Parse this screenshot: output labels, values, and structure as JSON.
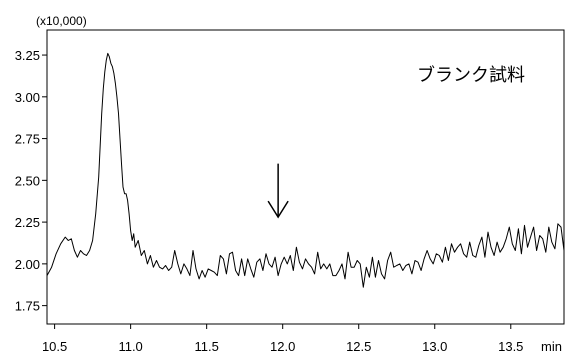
{
  "chart_data": {
    "type": "line",
    "y_scale_label": "(x10,000)",
    "x_unit": "min",
    "annotation": "ブランク試料",
    "marker": {
      "type": "arrow-down",
      "x": 11.97,
      "y_from": 2.6,
      "y_to": 2.28
    },
    "xlim": [
      10.45,
      13.85
    ],
    "ylim": [
      1.64,
      3.4
    ],
    "x_ticks": [
      10.5,
      11.0,
      11.5,
      12.0,
      12.5,
      13.0,
      13.5
    ],
    "x_tick_labels": [
      "10.5",
      "11.0",
      "11.5",
      "12.0",
      "12.5",
      "13.0",
      "13.5"
    ],
    "y_ticks": [
      1.75,
      2.0,
      2.25,
      2.5,
      2.75,
      3.0,
      3.25
    ],
    "y_tick_labels": [
      "1.75",
      "2.00",
      "2.25",
      "2.50",
      "2.75",
      "3.00",
      "3.25"
    ],
    "grid": false,
    "series": [
      {
        "x": [
          10.45,
          10.48,
          10.51,
          10.54,
          10.57,
          10.59,
          10.61,
          10.63,
          10.65,
          10.67,
          10.69,
          10.71,
          10.73,
          10.75,
          10.77,
          10.79,
          10.81,
          10.82,
          10.83,
          10.84,
          10.85,
          10.86,
          10.87,
          10.88,
          10.89,
          10.9,
          10.91,
          10.92,
          10.93,
          10.94,
          10.95,
          10.96,
          10.97,
          10.98,
          10.99,
          11.0,
          11.01,
          11.02,
          11.03,
          11.05,
          11.07,
          11.09,
          11.11,
          11.13,
          11.15,
          11.17,
          11.19,
          11.21,
          11.23,
          11.25,
          11.27,
          11.29,
          11.31,
          11.33,
          11.35,
          11.37,
          11.39,
          11.41,
          11.43,
          11.45,
          11.47,
          11.49,
          11.51,
          11.53,
          11.55,
          11.57,
          11.59,
          11.61,
          11.63,
          11.65,
          11.67,
          11.69,
          11.71,
          11.73,
          11.75,
          11.77,
          11.79,
          11.81,
          11.83,
          11.85,
          11.87,
          11.89,
          11.91,
          11.93,
          11.95,
          11.97,
          11.99,
          12.01,
          12.03,
          12.05,
          12.07,
          12.09,
          12.11,
          12.13,
          12.15,
          12.17,
          12.19,
          12.21,
          12.23,
          12.25,
          12.27,
          12.29,
          12.31,
          12.33,
          12.35,
          12.37,
          12.39,
          12.41,
          12.43,
          12.45,
          12.47,
          12.49,
          12.51,
          12.53,
          12.55,
          12.57,
          12.59,
          12.61,
          12.63,
          12.65,
          12.67,
          12.69,
          12.71,
          12.73,
          12.75,
          12.77,
          12.79,
          12.81,
          12.83,
          12.85,
          12.87,
          12.89,
          12.91,
          12.93,
          12.95,
          12.97,
          12.99,
          13.01,
          13.03,
          13.05,
          13.07,
          13.09,
          13.11,
          13.13,
          13.15,
          13.17,
          13.19,
          13.21,
          13.23,
          13.25,
          13.27,
          13.29,
          13.31,
          13.33,
          13.35,
          13.37,
          13.39,
          13.41,
          13.43,
          13.45,
          13.47,
          13.49,
          13.51,
          13.53,
          13.55,
          13.57,
          13.59,
          13.61,
          13.63,
          13.65,
          13.67,
          13.69,
          13.71,
          13.73,
          13.75,
          13.77,
          13.79,
          13.81,
          13.83,
          13.85
        ],
        "values": [
          1.93,
          1.98,
          2.06,
          2.12,
          2.16,
          2.14,
          2.15,
          2.08,
          2.04,
          2.08,
          2.06,
          2.05,
          2.08,
          2.14,
          2.3,
          2.52,
          2.9,
          3.05,
          3.15,
          3.22,
          3.26,
          3.24,
          3.2,
          3.18,
          3.14,
          3.08,
          3.0,
          2.9,
          2.75,
          2.6,
          2.46,
          2.42,
          2.42,
          2.38,
          2.3,
          2.2,
          2.14,
          2.18,
          2.1,
          2.14,
          2.05,
          2.08,
          2.0,
          2.05,
          1.98,
          2.02,
          1.98,
          1.97,
          1.99,
          1.96,
          1.98,
          2.08,
          2.0,
          1.94,
          2.0,
          1.97,
          1.93,
          2.08,
          1.97,
          1.91,
          1.96,
          1.92,
          1.97,
          1.96,
          1.95,
          1.93,
          2.05,
          2.03,
          1.94,
          2.06,
          2.07,
          1.96,
          1.93,
          2.03,
          1.93,
          2.03,
          1.97,
          1.92,
          2.01,
          2.03,
          1.96,
          2.06,
          2.0,
          1.98,
          2.04,
          1.93,
          2.0,
          2.04,
          2.0,
          2.05,
          1.96,
          2.1,
          2.01,
          1.97,
          2.03,
          2.0,
          1.98,
          1.94,
          2.07,
          1.97,
          2.0,
          1.97,
          2.0,
          1.93,
          1.93,
          1.96,
          2.0,
          1.91,
          2.07,
          1.98,
          1.98,
          2.02,
          2.0,
          1.86,
          1.98,
          1.92,
          2.04,
          1.92,
          2.02,
          1.94,
          1.91,
          2.02,
          2.07,
          1.98,
          1.99,
          2.0,
          1.96,
          1.99,
          2.0,
          1.94,
          2.02,
          2.01,
          1.96,
          2.03,
          2.08,
          2.03,
          2.0,
          2.06,
          2.05,
          2.01,
          2.1,
          2.02,
          2.12,
          2.07,
          2.1,
          2.12,
          2.06,
          2.04,
          2.13,
          2.05,
          2.04,
          2.11,
          2.16,
          2.04,
          2.19,
          2.1,
          2.05,
          2.13,
          2.07,
          2.1,
          2.15,
          2.22,
          2.12,
          2.08,
          2.21,
          2.06,
          2.23,
          2.1,
          2.16,
          2.22,
          2.08,
          2.17,
          2.15,
          2.07,
          2.22,
          2.13,
          2.09,
          2.24,
          2.22,
          2.08
        ]
      }
    ]
  }
}
